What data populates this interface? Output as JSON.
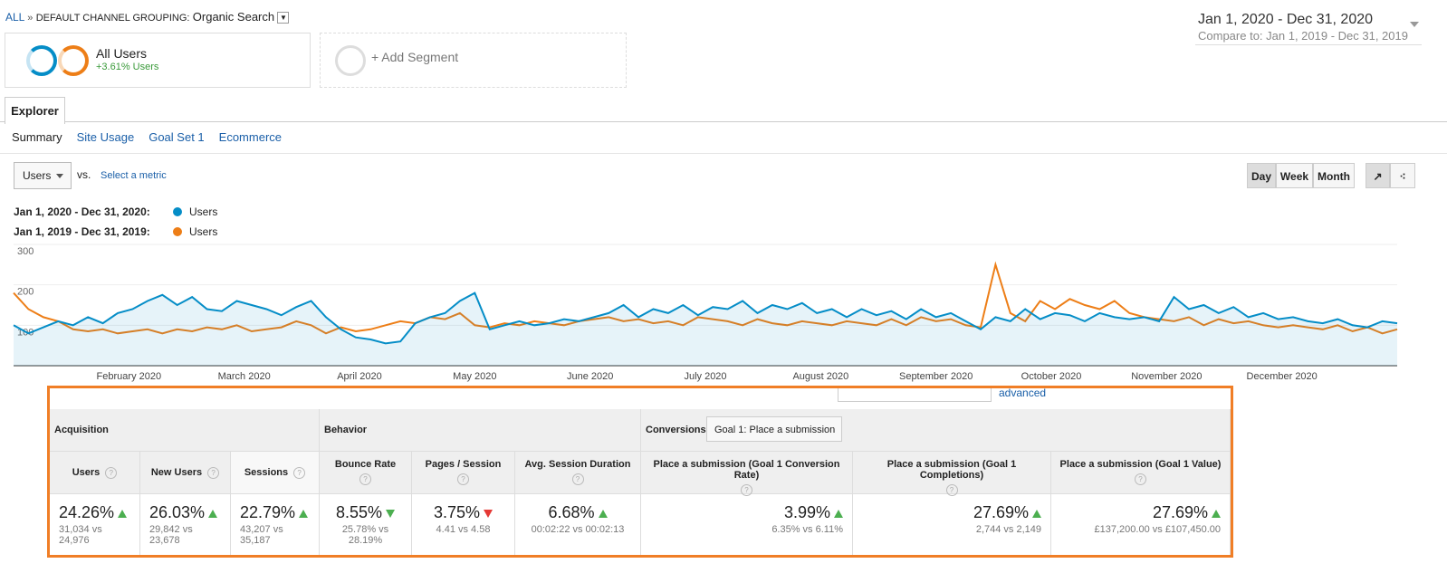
{
  "breadcrumb": {
    "root": "ALL",
    "separator": "»",
    "dimension": "DEFAULT CHANNEL GROUPING:",
    "value": "Organic Search"
  },
  "date_range": {
    "primary": "Jan 1, 2020 - Dec 31, 2020",
    "compare": "Compare to: Jan 1, 2019 - Dec 31, 2019"
  },
  "segments": {
    "name": "All Users",
    "change": "+3.61% Users",
    "add": "+ Add Segment"
  },
  "tabs": {
    "explorer": "Explorer",
    "subtabs": [
      "Summary",
      "Site Usage",
      "Goal Set 1",
      "Ecommerce"
    ]
  },
  "metric_picker": {
    "metric": "Users",
    "vs": "vs.",
    "second": "Select a metric"
  },
  "granularity": {
    "options": [
      "Day",
      "Week",
      "Month"
    ],
    "selected": "Day"
  },
  "chart_data": {
    "type": "line",
    "legend_labels": [
      "Jan 1, 2020 - Dec 31, 2020:",
      "Jan 1, 2019 - Dec 31, 2019:"
    ],
    "xticks": [
      "February 2020",
      "March 2020",
      "April 2020",
      "May 2020",
      "June 2020",
      "July 2020",
      "August 2020",
      "September 2020",
      "October 2020",
      "November 2020",
      "December 2020"
    ],
    "ylim": [
      0,
      300
    ],
    "yticks": [
      100,
      200,
      300
    ],
    "grid": true,
    "series": [
      {
        "name": "Users",
        "color": "#058dc7",
        "area": true,
        "values": [
          100,
          80,
          95,
          110,
          100,
          120,
          105,
          130,
          140,
          160,
          175,
          150,
          170,
          140,
          135,
          160,
          150,
          140,
          125,
          145,
          160,
          120,
          90,
          70,
          65,
          55,
          60,
          105,
          120,
          130,
          160,
          180,
          90,
          100,
          110,
          100,
          105,
          115,
          110,
          120,
          130,
          150,
          120,
          140,
          130,
          150,
          125,
          145,
          140,
          160,
          130,
          150,
          140,
          155,
          130,
          140,
          120,
          140,
          125,
          135,
          115,
          140,
          120,
          130,
          110,
          90,
          120,
          110,
          140,
          115,
          130,
          125,
          110,
          130,
          120,
          115,
          120,
          110,
          170,
          140,
          150,
          130,
          145,
          120,
          130,
          115,
          120,
          110,
          105,
          115,
          100,
          95,
          110,
          105
        ]
      },
      {
        "name": "Users",
        "color": "#ed7e17",
        "area": false,
        "values": [
          180,
          140,
          120,
          110,
          90,
          85,
          90,
          80,
          85,
          90,
          80,
          90,
          85,
          95,
          90,
          100,
          85,
          90,
          95,
          110,
          100,
          80,
          95,
          85,
          90,
          100,
          110,
          105,
          120,
          115,
          130,
          100,
          95,
          105,
          100,
          110,
          105,
          100,
          110,
          115,
          120,
          110,
          115,
          105,
          110,
          100,
          120,
          115,
          110,
          100,
          115,
          105,
          100,
          110,
          105,
          100,
          110,
          105,
          100,
          115,
          100,
          120,
          110,
          115,
          100,
          95,
          250,
          130,
          110,
          160,
          140,
          165,
          150,
          140,
          160,
          130,
          120,
          115,
          110,
          120,
          100,
          115,
          105,
          110,
          100,
          95,
          100,
          95,
          90,
          100,
          85,
          95,
          80,
          90
        ]
      }
    ]
  },
  "table": {
    "search_link": "advanced",
    "groups": [
      "Acquisition",
      "Behavior",
      "Conversions"
    ],
    "goal_select": "Goal 1: Place a submission",
    "columns": [
      {
        "name": "Users",
        "value": "24.26%",
        "trend": "up",
        "detail": "31,034 vs 24,976"
      },
      {
        "name": "New Users",
        "value": "26.03%",
        "trend": "up",
        "detail": "29,842 vs 23,678"
      },
      {
        "name": "Sessions",
        "value": "22.79%",
        "trend": "up",
        "detail": "43,207 vs 35,187"
      },
      {
        "name": "Bounce Rate",
        "value": "8.55%",
        "trend": "down-good",
        "detail": "25.78% vs 28.19%"
      },
      {
        "name": "Pages / Session",
        "value": "3.75%",
        "trend": "down",
        "detail": "4.41 vs 4.58"
      },
      {
        "name": "Avg. Session Duration",
        "value": "6.68%",
        "trend": "up",
        "detail": "00:02:22 vs 00:02:13"
      },
      {
        "name": "Place a submission (Goal 1 Conversion Rate)",
        "value": "3.99%",
        "trend": "up",
        "detail": "6.35% vs 6.11%"
      },
      {
        "name": "Place a submission (Goal 1 Completions)",
        "value": "27.69%",
        "trend": "up",
        "detail": "2,744 vs 2,149"
      },
      {
        "name": "Place a submission (Goal 1 Value)",
        "value": "27.69%",
        "trend": "up",
        "detail": "£137,200.00 vs £107,450.00"
      }
    ]
  }
}
